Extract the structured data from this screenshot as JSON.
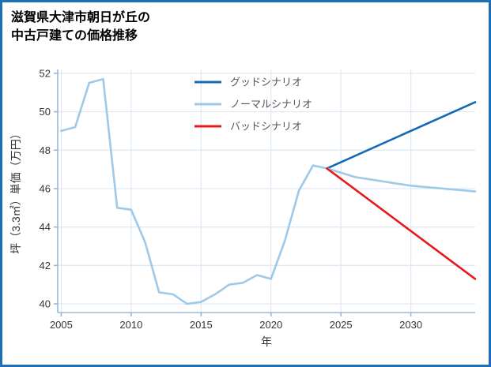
{
  "page": {
    "border_color": "#1d6fb8",
    "background": "#ffffff"
  },
  "title": {
    "line1": "滋賀県大津市朝日が丘の",
    "line2": "中古戸建ての価格推移"
  },
  "chart_data": {
    "type": "line",
    "title": "滋賀県大津市朝日が丘の中古戸建ての価格推移",
    "xlabel": "年",
    "ylabel": "坪（3.3㎡）単価（万円）",
    "xlim": [
      2004.75,
      2034.6
    ],
    "ylim": [
      39.55,
      52.2
    ],
    "xticks": [
      2005,
      2010,
      2015,
      2020,
      2025,
      2030
    ],
    "yticks": [
      40,
      42,
      44,
      46,
      48,
      50,
      52
    ],
    "grid": true,
    "legend_position": "upper center",
    "colors": {
      "grid": "#dde8f3",
      "axis": "#9db7d2",
      "tick_label": "#333333",
      "axis_label": "#333333",
      "legend_text": "#555555"
    },
    "series": [
      {
        "id": "history",
        "legend": null,
        "color": "#9ec9e8",
        "x": [
          2005,
          2006,
          2007,
          2008,
          2009,
          2010,
          2011,
          2012,
          2013,
          2014,
          2015,
          2016,
          2017,
          2018,
          2019,
          2020,
          2021,
          2022,
          2023,
          2024
        ],
        "y": [
          49.0,
          49.2,
          51.5,
          51.7,
          45.0,
          44.9,
          43.2,
          40.6,
          40.5,
          40.0,
          40.1,
          40.5,
          41.0,
          41.1,
          41.5,
          41.3,
          43.3,
          45.9,
          47.2,
          47.05
        ]
      },
      {
        "id": "good",
        "legend": "グッドシナリオ",
        "color": "#1569b4",
        "x": [
          2024,
          2034.6
        ],
        "y": [
          47.05,
          50.5
        ]
      },
      {
        "id": "normal",
        "legend": "ノーマルシナリオ",
        "color": "#9ec9e8",
        "x": [
          2024,
          2026,
          2030,
          2034.6
        ],
        "y": [
          47.05,
          46.6,
          46.15,
          45.85
        ]
      },
      {
        "id": "bad",
        "legend": "バッドシナリオ",
        "color": "#e8191c",
        "x": [
          2024,
          2034.6
        ],
        "y": [
          47.05,
          41.3
        ]
      }
    ]
  }
}
